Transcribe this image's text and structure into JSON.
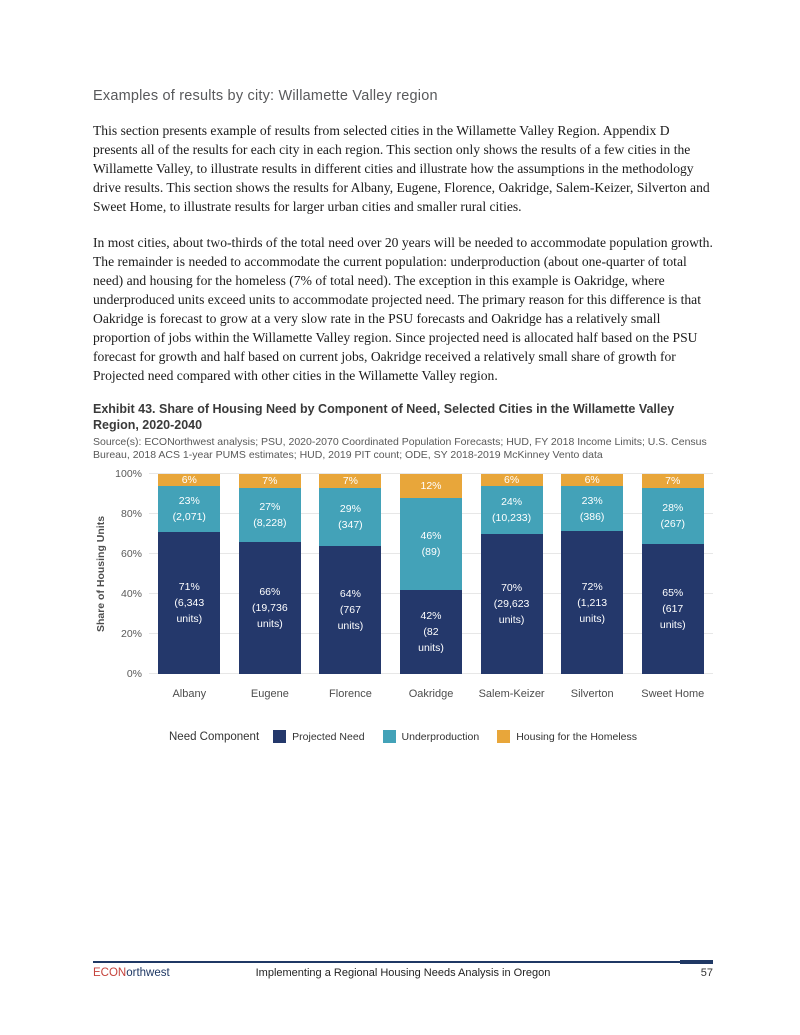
{
  "page": {
    "heading": "Examples of results by city: Willamette Valley region",
    "paragraphs": [
      "This section presents example of results from selected cities in the Willamette Valley Region. Appendix D presents all of the results for each city in each region. This section only shows the results of a few cities in the Willamette Valley, to illustrate results in different cities and illustrate how the assumptions in the methodology drive results. This section shows the results for Albany, Eugene, Florence, Oakridge, Salem-Keizer, Silverton and Sweet Home, to illustrate results for larger urban cities and smaller rural cities.",
      "In most cities, about two-thirds of the total need over 20 years will be needed to accommodate population growth. The remainder is needed to accommodate the current population: underproduction (about one-quarter of total need) and housing for the homeless (7% of total need). The exception in this example is Oakridge, where underproduced units exceed units to accommodate projected need. The primary reason for this difference is that Oakridge is forecast to grow at a very slow rate in the PSU forecasts and Oakridge has a relatively small proportion of jobs within the Willamette Valley region. Since projected need is allocated half based on the PSU forecast for growth and half based on current jobs, Oakridge received a relatively small share of growth for Projected need compared with other cities in the Willamette Valley region."
    ],
    "exhibit": {
      "title": "Exhibit 43. Share of Housing Need by Component of Need, Selected Cities in the Willamette Valley Region, 2020-2040",
      "source": "Source(s): ECONorthwest analysis; PSU, 2020-2070 Coordinated Population Forecasts; HUD, FY 2018 Income Limits; U.S. Census Bureau, 2018 ACS 1-year PUMS estimates; HUD, 2019 PIT count; ODE, SY 2018-2019 McKinney Vento data"
    },
    "footer": {
      "brand_red": "ECON",
      "brand_dark": "orthwest",
      "center": "Implementing a Regional Housing Needs Analysis in Oregon",
      "page_number": "57"
    }
  },
  "chart_data": {
    "type": "bar",
    "stacked": true,
    "title": "Share of Housing Need by Component of Need, Selected Cities in the Willamette Valley Region, 2020-2040",
    "ylabel": "Share of Housing Units",
    "xlabel": "",
    "ylim": [
      0,
      100
    ],
    "yticks": [
      "0%",
      "20%",
      "40%",
      "60%",
      "80%",
      "100%"
    ],
    "grid": true,
    "legend_position": "bottom",
    "legend_title": "Need Component",
    "categories": [
      "Albany",
      "Eugene",
      "Florence",
      "Oakridge",
      "Salem-Keizer",
      "Silverton",
      "Sweet Home"
    ],
    "series": [
      {
        "name": "Projected Need",
        "color": "#24386b",
        "values": [
          71,
          66,
          64,
          42,
          70,
          72,
          65
        ],
        "units": [
          6343,
          19736,
          767,
          82,
          29623,
          1213,
          617
        ],
        "labels": [
          [
            "71%",
            "(6,343",
            "units)"
          ],
          [
            "66%",
            "(19,736",
            "units)"
          ],
          [
            "64%",
            "(767",
            "units)"
          ],
          [
            "42%",
            "(82",
            "units)"
          ],
          [
            "70%",
            "(29,623",
            "units)"
          ],
          [
            "72%",
            "(1,213",
            "units)"
          ],
          [
            "65%",
            "(617",
            "units)"
          ]
        ]
      },
      {
        "name": "Underproduction",
        "color": "#43a2b8",
        "values": [
          23,
          27,
          29,
          46,
          24,
          23,
          28
        ],
        "units": [
          2071,
          8228,
          347,
          89,
          10233,
          386,
          267
        ],
        "labels": [
          [
            "23%",
            "(2,071)"
          ],
          [
            "27%",
            "(8,228)"
          ],
          [
            "29%",
            "(347)"
          ],
          [
            "46%",
            "(89)"
          ],
          [
            "24%",
            "(10,233)"
          ],
          [
            "23%",
            "(386)"
          ],
          [
            "28%",
            "(267)"
          ]
        ]
      },
      {
        "name": "Housing for the Homeless",
        "color": "#e8a63a",
        "values": [
          6,
          7,
          7,
          12,
          6,
          6,
          7
        ],
        "labels": [
          [
            "6%"
          ],
          [
            "7%"
          ],
          [
            "7%"
          ],
          [
            "12%"
          ],
          [
            "6%"
          ],
          [
            "6%"
          ],
          [
            "7%"
          ]
        ]
      }
    ]
  }
}
